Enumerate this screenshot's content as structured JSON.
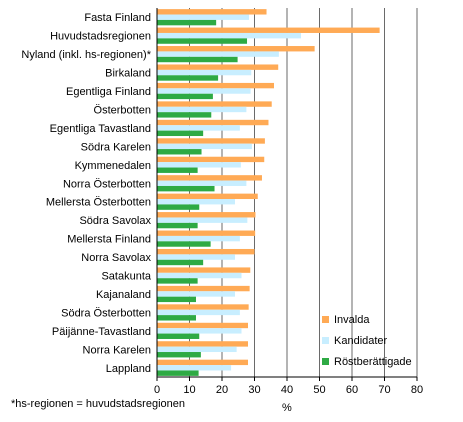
{
  "chart_data": {
    "type": "bar",
    "orientation": "horizontal",
    "categories": [
      "Fasta Finland",
      "Huvudstadsregionen",
      "Nyland (inkl. hs-regionen)*",
      "Birkaland",
      "Egentliga Finland",
      "Österbotten",
      "Egentliga Tavastland",
      "Södra Karelen",
      "Kymmenedalen",
      "Norra Österbotten",
      "Mellersta Österbotten",
      "Södra Savolax",
      "Mellersta Finland",
      "Norra Savolax",
      "Satakunta",
      "Kajanaland",
      "Södra Österbotten",
      "Päijänne-Tavastland",
      "Norra Karelen",
      "Lappland"
    ],
    "series": [
      {
        "name": "Invalda",
        "color": "#FFAA55",
        "values": [
          33.7,
          68.5,
          48.5,
          37.3,
          36.0,
          35.3,
          34.3,
          33.2,
          33.0,
          32.3,
          31.0,
          30.3,
          30.2,
          30.0,
          28.7,
          28.5,
          28.2,
          28.0,
          28.0,
          28.0
        ]
      },
      {
        "name": "Kandidater",
        "color": "#C8EEFF",
        "values": [
          28.3,
          44.3,
          37.5,
          29.0,
          28.8,
          27.5,
          25.5,
          29.2,
          25.8,
          27.5,
          24.0,
          27.8,
          25.5,
          24.0,
          26.0,
          24.0,
          25.5,
          26.0,
          24.5,
          22.8
        ]
      },
      {
        "name": "Röstberättigade",
        "color": "#2EAA44",
        "values": [
          18.2,
          27.7,
          24.8,
          18.8,
          17.2,
          16.7,
          14.2,
          13.7,
          12.5,
          17.7,
          13.0,
          12.5,
          16.5,
          14.2,
          12.5,
          12.0,
          12.0,
          13.0,
          13.5,
          12.8
        ]
      }
    ],
    "xticks": [
      0,
      10,
      20,
      30,
      40,
      50,
      60,
      70,
      80
    ],
    "xlim": [
      0,
      80
    ],
    "xlabel": "%",
    "grid": "vertical",
    "legend_position": "bottom-right"
  },
  "footnote": "*hs-regionen = huvudstadsregionen"
}
